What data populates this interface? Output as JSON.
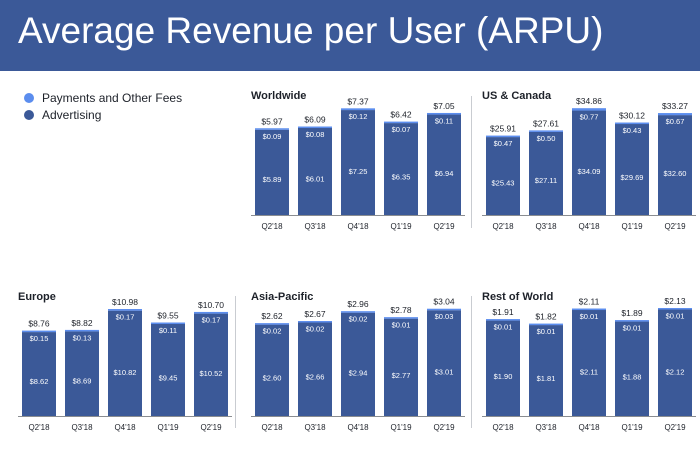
{
  "title": "Average Revenue per User (ARPU)",
  "colors": {
    "header": "#3b5998",
    "advertising": "#3b5998",
    "payments": "#5b8dee",
    "baseline": "#8a8d91"
  },
  "legend": [
    {
      "label": "Payments and Other Fees",
      "color": "#5b8dee"
    },
    {
      "label": "Advertising",
      "color": "#3b5998"
    }
  ],
  "chart_data": [
    {
      "type": "bar",
      "title": "Worldwide",
      "categories": [
        "Q2'18",
        "Q3'18",
        "Q4'18",
        "Q1'19",
        "Q2'19"
      ],
      "series": [
        {
          "name": "Advertising",
          "values": [
            5.89,
            6.01,
            7.25,
            6.35,
            6.94
          ],
          "labels": [
            "$5.89",
            "$6.01",
            "$7.25",
            "$6.35",
            "$6.94"
          ]
        },
        {
          "name": "Payments and Other Fees",
          "values": [
            0.09,
            0.08,
            0.12,
            0.07,
            0.11
          ],
          "labels": [
            "$0.09",
            "$0.08",
            "$0.12",
            "$0.07",
            "$0.11"
          ]
        }
      ],
      "totals": [
        "$5.97",
        "$6.09",
        "$7.37",
        "$6.42",
        "$7.05"
      ],
      "ylim": [
        0,
        7.6
      ]
    },
    {
      "type": "bar",
      "title": "US & Canada",
      "categories": [
        "Q2'18",
        "Q3'18",
        "Q4'18",
        "Q1'19",
        "Q2'19"
      ],
      "series": [
        {
          "name": "Advertising",
          "values": [
            25.43,
            27.11,
            34.09,
            29.69,
            32.6
          ],
          "labels": [
            "$25.43",
            "$27.11",
            "$34.09",
            "$29.69",
            "$32.60"
          ]
        },
        {
          "name": "Payments and Other Fees",
          "values": [
            0.47,
            0.5,
            0.77,
            0.43,
            0.67
          ],
          "labels": [
            "$0.47",
            "$0.50",
            "$0.77",
            "$0.43",
            "$0.67"
          ]
        }
      ],
      "totals": [
        "$25.91",
        "$27.61",
        "$34.86",
        "$30.12",
        "$33.27"
      ],
      "ylim": [
        0,
        35.9
      ]
    },
    {
      "type": "bar",
      "title": "Europe",
      "categories": [
        "Q2'18",
        "Q3'18",
        "Q4'18",
        "Q1'19",
        "Q2'19"
      ],
      "series": [
        {
          "name": "Advertising",
          "values": [
            8.62,
            8.69,
            10.82,
            9.45,
            10.52
          ],
          "labels": [
            "$8.62",
            "$8.69",
            "$10.82",
            "$9.45",
            "$10.52"
          ]
        },
        {
          "name": "Payments and Other Fees",
          "values": [
            0.15,
            0.13,
            0.17,
            0.11,
            0.17
          ],
          "labels": [
            "$0.15",
            "$0.13",
            "$0.17",
            "$0.11",
            "$0.17"
          ]
        }
      ],
      "totals": [
        "$8.76",
        "$8.82",
        "$10.98",
        "$9.55",
        "$10.70"
      ],
      "ylim": [
        0,
        11.3
      ]
    },
    {
      "type": "bar",
      "title": "Asia-Pacific",
      "categories": [
        "Q2'18",
        "Q3'18",
        "Q4'18",
        "Q1'19",
        "Q2'19"
      ],
      "series": [
        {
          "name": "Advertising",
          "values": [
            2.6,
            2.66,
            2.94,
            2.77,
            3.01
          ],
          "labels": [
            "$2.60",
            "$2.66",
            "$2.94",
            "$2.77",
            "$3.01"
          ]
        },
        {
          "name": "Payments and Other Fees",
          "values": [
            0.02,
            0.02,
            0.02,
            0.01,
            0.03
          ],
          "labels": [
            "$0.02",
            "$0.02",
            "$0.02",
            "$0.01",
            "$0.03"
          ]
        }
      ],
      "totals": [
        "$2.62",
        "$2.67",
        "$2.96",
        "$2.78",
        "$3.04"
      ],
      "ylim": [
        0,
        3.13
      ]
    },
    {
      "type": "bar",
      "title": "Rest of World",
      "categories": [
        "Q2'18",
        "Q3'18",
        "Q4'18",
        "Q1'19",
        "Q2'19"
      ],
      "series": [
        {
          "name": "Advertising",
          "values": [
            1.9,
            1.81,
            2.11,
            1.88,
            2.12
          ],
          "labels": [
            "$1.90",
            "$1.81",
            "$2.11",
            "$1.88",
            "$2.12"
          ]
        },
        {
          "name": "Payments and Other Fees",
          "values": [
            0.01,
            0.01,
            0.01,
            0.01,
            0.01
          ],
          "labels": [
            "$0.01",
            "$0.01",
            "$0.01",
            "$0.01",
            "$0.01"
          ]
        }
      ],
      "totals": [
        "$1.91",
        "$1.82",
        "$2.11",
        "$1.89",
        "$2.13"
      ],
      "ylim": [
        0,
        2.19
      ]
    }
  ]
}
